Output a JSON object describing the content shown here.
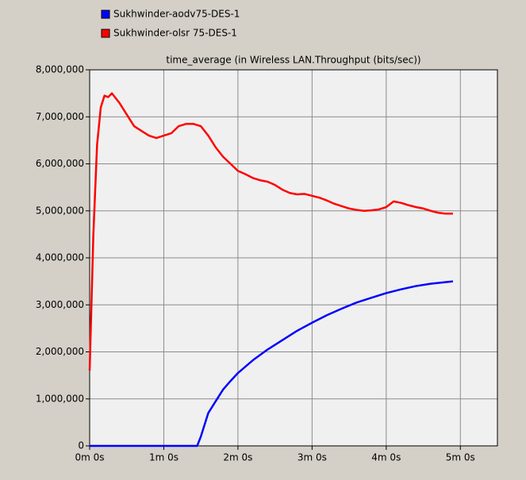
{
  "chart_data": {
    "type": "line",
    "title": "time_average (in Wireless LAN.Throughput (bits/sec))",
    "series": [
      {
        "name": "Sukhwinder-aodv75-DES-1",
        "color": "#0000ff",
        "x": [
          0,
          87,
          90,
          96,
          102,
          108,
          114,
          120,
          132,
          144,
          156,
          168,
          180,
          192,
          204,
          216,
          228,
          240,
          252,
          264,
          276,
          294
        ],
        "values": [
          0,
          0,
          200000,
          700000,
          950000,
          1200000,
          1380000,
          1550000,
          1820000,
          2050000,
          2250000,
          2450000,
          2620000,
          2780000,
          2920000,
          3050000,
          3150000,
          3250000,
          3330000,
          3400000,
          3450000,
          3500000
        ]
      },
      {
        "name": "Sukhwinder-olsr 75-DES-1",
        "color": "#ff0000",
        "x": [
          0,
          3,
          6,
          9,
          12,
          15,
          18,
          24,
          30,
          36,
          42,
          48,
          54,
          60,
          66,
          72,
          78,
          84,
          90,
          96,
          102,
          108,
          114,
          120,
          126,
          132,
          138,
          144,
          150,
          156,
          162,
          168,
          174,
          180,
          186,
          192,
          198,
          204,
          210,
          216,
          222,
          228,
          234,
          240,
          246,
          252,
          258,
          264,
          270,
          276,
          282,
          288,
          294
        ],
        "values": [
          1600000,
          4500000,
          6400000,
          7200000,
          7450000,
          7420000,
          7500000,
          7300000,
          7050000,
          6800000,
          6700000,
          6600000,
          6550000,
          6600000,
          6650000,
          6800000,
          6850000,
          6850000,
          6800000,
          6600000,
          6350000,
          6150000,
          6000000,
          5850000,
          5780000,
          5700000,
          5650000,
          5620000,
          5550000,
          5450000,
          5380000,
          5350000,
          5360000,
          5320000,
          5280000,
          5220000,
          5150000,
          5100000,
          5050000,
          5020000,
          5000000,
          5010000,
          5030000,
          5080000,
          5200000,
          5170000,
          5120000,
          5080000,
          5050000,
          5000000,
          4960000,
          4940000,
          4940000
        ]
      }
    ],
    "xlim": [
      0,
      330
    ],
    "xticks": [
      {
        "value": 0,
        "label": "0m 0s"
      },
      {
        "value": 60,
        "label": "1m 0s"
      },
      {
        "value": 120,
        "label": "2m 0s"
      },
      {
        "value": 180,
        "label": "3m 0s"
      },
      {
        "value": 240,
        "label": "4m 0s"
      },
      {
        "value": 300,
        "label": "5m 0s"
      }
    ],
    "ylim": [
      0,
      8000000
    ],
    "yticks": [
      0,
      {
        "value": 1000000,
        "label": "1,000,000"
      },
      {
        "value": 2000000,
        "label": "2,000,000"
      },
      {
        "value": 3000000,
        "label": "3,000,000"
      },
      {
        "value": 4000000,
        "label": "4,000,000"
      },
      {
        "value": 5000000,
        "label": "5,000,000"
      },
      {
        "value": 6000000,
        "label": "6,000,000"
      },
      {
        "value": 7000000,
        "label": "7,000,000"
      },
      {
        "value": {
          "value": 8000000,
          "label": "8,000,000"
        }
      }
    ],
    "grid": true
  }
}
